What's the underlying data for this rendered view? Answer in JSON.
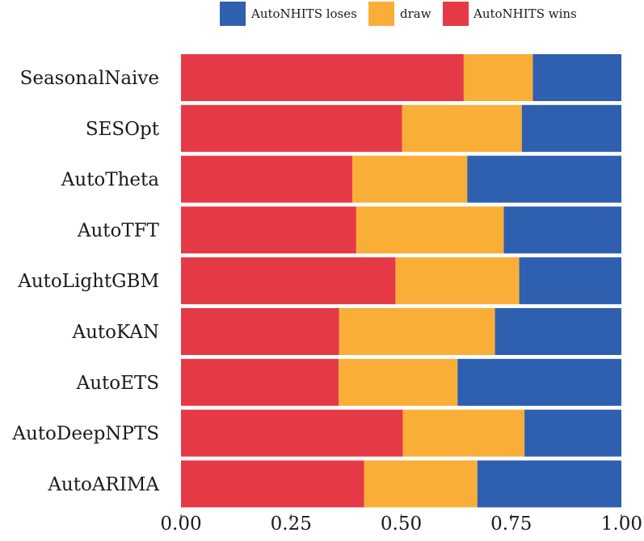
{
  "chart_data": {
    "type": "bar",
    "orientation": "horizontal",
    "stacked": true,
    "categories": [
      "SeasonalNaive",
      "SESOpt",
      "AutoTheta",
      "AutoTFT",
      "AutoLightGBM",
      "AutoKAN",
      "AutoETS",
      "AutoDeepNPTS",
      "AutoARIMA"
    ],
    "series": [
      {
        "name": "AutoNHITS wins",
        "color": "#e63946",
        "values": [
          0.642,
          0.502,
          0.389,
          0.398,
          0.487,
          0.359,
          0.358,
          0.504,
          0.416
        ]
      },
      {
        "name": "draw",
        "color": "#f9ae38",
        "values": [
          0.157,
          0.272,
          0.261,
          0.335,
          0.281,
          0.354,
          0.27,
          0.276,
          0.257
        ]
      },
      {
        "name": "AutoNHITS loses",
        "color": "#2f5faf",
        "values": [
          0.201,
          0.226,
          0.35,
          0.267,
          0.232,
          0.287,
          0.372,
          0.22,
          0.327
        ]
      }
    ],
    "legend": {
      "position": "top",
      "entries": [
        {
          "label": "AutoNHITS loses",
          "color": "#2f5faf"
        },
        {
          "label": "draw",
          "color": "#f9ae38"
        },
        {
          "label": "AutoNHITS wins",
          "color": "#e63946"
        }
      ]
    },
    "xlim": [
      0,
      1
    ],
    "xticks": [
      0,
      0.25,
      0.5,
      0.75,
      1
    ],
    "xtick_labels": [
      "0.00",
      "0.25",
      "0.50",
      "0.75",
      "1.00"
    ],
    "title": "",
    "xlabel": "",
    "ylabel": "",
    "grid": false
  }
}
